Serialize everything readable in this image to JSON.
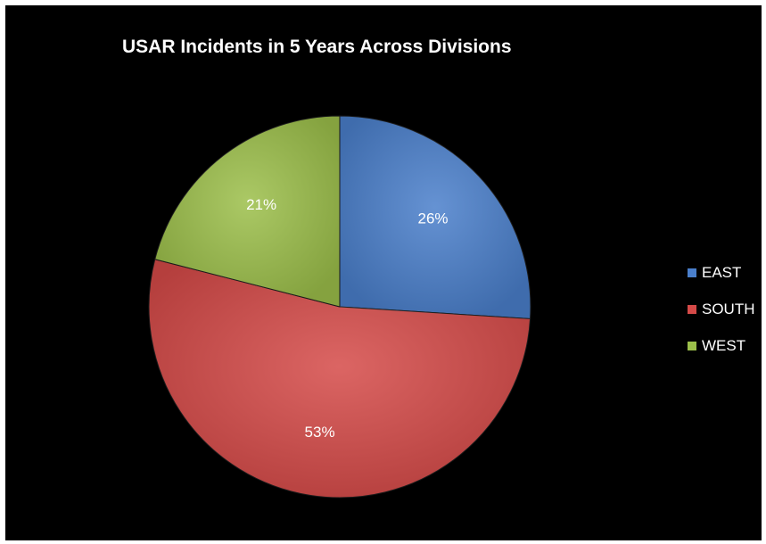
{
  "chart_data": {
    "type": "pie",
    "title": "USAR Incidents in 5 Years Across Divisions",
    "categories": [
      "EAST",
      "SOUTH",
      "WEST"
    ],
    "values": [
      26,
      53,
      21
    ],
    "value_labels": [
      "26%",
      "53%",
      "21%"
    ],
    "colors": [
      "#4a7fcb",
      "#d54a48",
      "#9cbf4a"
    ],
    "legend_position": "right",
    "background": "#000000"
  }
}
